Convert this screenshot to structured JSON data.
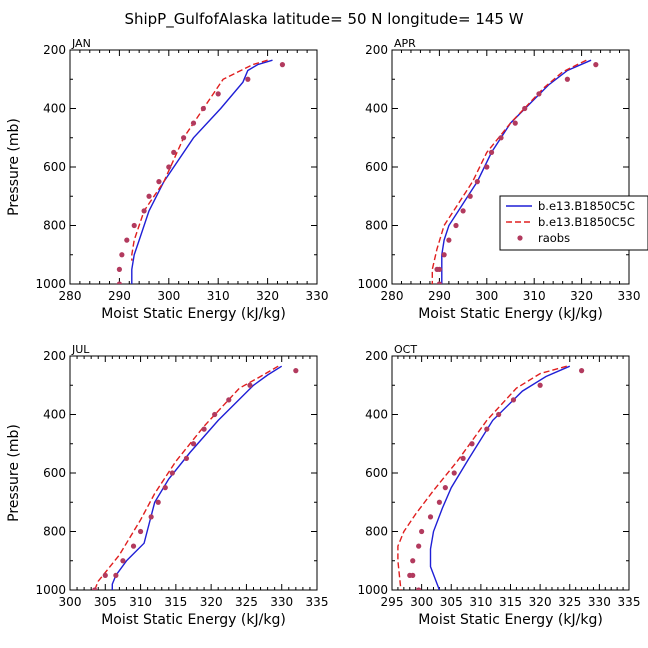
{
  "figure_title": "ShipP_GulfofAlaska  latitude= 50 N longitude= 145 W",
  "legend": {
    "entries": [
      {
        "label": "b.e13.B1850C5C",
        "style": "solid",
        "color": "#1f1fd6"
      },
      {
        "label": "b.e13.B1850C5C",
        "style": "dashed",
        "color": "#e01e1e"
      },
      {
        "label": "raobs",
        "style": "dots",
        "color": "#b23a5e"
      }
    ]
  },
  "colors": {
    "solid": "#1f1fd6",
    "dashed": "#e01e1e",
    "dots": "#b23a5e"
  },
  "chart_data": [
    {
      "type": "line",
      "panel": "JAN",
      "title": "JAN",
      "xlabel": "Moist Static Energy (kJ/kg)",
      "ylabel": "Pressure (mb)",
      "xlim": [
        280,
        330
      ],
      "ylim": [
        1000,
        200
      ],
      "xticks": [
        280,
        290,
        300,
        310,
        320,
        330
      ],
      "yticks": [
        200,
        400,
        600,
        800,
        1000
      ],
      "series": [
        {
          "name": "b.e13.B1850C5C",
          "style": "solid",
          "x": [
            321,
            318,
            316,
            315,
            310.5,
            305,
            299,
            296,
            294,
            293,
            292.5,
            292.5
          ],
          "y": [
            235,
            250,
            270,
            310,
            400,
            500,
            650,
            750,
            850,
            900,
            950,
            1000
          ]
        },
        {
          "name": "b.e13.B1850C5C",
          "style": "dashed",
          "x": [
            320,
            317,
            314,
            311,
            307,
            303,
            299,
            295,
            293,
            292.5,
            292.5
          ],
          "y": [
            235,
            250,
            275,
            300,
            400,
            500,
            650,
            750,
            850,
            900,
            920
          ]
        },
        {
          "name": "raobs",
          "style": "dots",
          "x": [
            323,
            316,
            310,
            307,
            305,
            303,
            301,
            300,
            298,
            296,
            295,
            293,
            291.5,
            290.5,
            290,
            290
          ],
          "y": [
            250,
            300,
            350,
            400,
            450,
            500,
            550,
            600,
            650,
            700,
            750,
            800,
            850,
            900,
            950,
            1000
          ]
        }
      ]
    },
    {
      "type": "line",
      "panel": "APR",
      "title": "APR",
      "xlabel": "Moist Static Energy (kJ/kg)",
      "ylabel": "",
      "xlim": [
        280,
        330
      ],
      "ylim": [
        1000,
        200
      ],
      "xticks": [
        280,
        290,
        300,
        310,
        320,
        330
      ],
      "yticks": [
        200,
        400,
        600,
        800,
        1000
      ],
      "series": [
        {
          "name": "b.e13.B1850C5C",
          "style": "solid",
          "x": [
            322,
            317,
            313,
            305,
            301,
            298,
            296,
            294,
            292,
            291,
            290.5,
            290.5
          ],
          "y": [
            235,
            270,
            320,
            450,
            550,
            650,
            700,
            750,
            800,
            850,
            900,
            1000
          ]
        },
        {
          "name": "b.e13.B1850C5C",
          "style": "dashed",
          "x": [
            321,
            316,
            312,
            305,
            300,
            297,
            295,
            293,
            291,
            289.5,
            288.5,
            288.5
          ],
          "y": [
            235,
            275,
            330,
            450,
            550,
            650,
            700,
            750,
            800,
            880,
            950,
            1000
          ]
        },
        {
          "name": "raobs",
          "style": "dots",
          "x": [
            323,
            317,
            311,
            308,
            306,
            303,
            301,
            300,
            298,
            296.5,
            295,
            293.5,
            292,
            291,
            290,
            289.5,
            290
          ],
          "y": [
            250,
            300,
            350,
            400,
            450,
            500,
            550,
            600,
            650,
            700,
            750,
            800,
            850,
            900,
            950,
            950,
            1000
          ]
        }
      ]
    },
    {
      "type": "line",
      "panel": "JUL",
      "title": "JUL",
      "xlabel": "Moist Static Energy (kJ/kg)",
      "ylabel": "Pressure (mb)",
      "xlim": [
        300,
        335
      ],
      "ylim": [
        1000,
        200
      ],
      "xticks": [
        300,
        305,
        310,
        315,
        320,
        325,
        330,
        335
      ],
      "yticks": [
        200,
        400,
        600,
        800,
        1000
      ],
      "series": [
        {
          "name": "b.e13.B1850C5C",
          "style": "solid",
          "x": [
            330,
            328,
            326,
            321,
            317,
            314,
            312,
            310.5,
            308,
            306.5,
            306,
            306
          ],
          "y": [
            235,
            265,
            300,
            420,
            530,
            620,
            700,
            840,
            900,
            950,
            980,
            1000
          ]
        },
        {
          "name": "b.e13.B1850C5C",
          "style": "dashed",
          "x": [
            329.5,
            327,
            324,
            319,
            315,
            312,
            310,
            307,
            305,
            304,
            303.5
          ],
          "y": [
            235,
            270,
            310,
            440,
            560,
            670,
            760,
            880,
            940,
            970,
            1000
          ]
        },
        {
          "name": "raobs",
          "style": "dots",
          "x": [
            332,
            325.5,
            322.5,
            320.5,
            319,
            317.5,
            316.5,
            314.5,
            313.5,
            312.5,
            311.5,
            310,
            309,
            307.5,
            306.5,
            305,
            303.5
          ],
          "y": [
            250,
            300,
            350,
            400,
            450,
            500,
            550,
            600,
            650,
            700,
            750,
            800,
            850,
            900,
            950,
            950,
            1000
          ]
        }
      ]
    },
    {
      "type": "line",
      "panel": "OCT",
      "title": "OCT",
      "xlabel": "Moist Static Energy (kJ/kg)",
      "ylabel": "",
      "xlim": [
        295,
        335
      ],
      "ylim": [
        1000,
        200
      ],
      "xticks": [
        295,
        300,
        305,
        310,
        315,
        320,
        325,
        330,
        335
      ],
      "yticks": [
        200,
        400,
        600,
        800,
        1000
      ],
      "series": [
        {
          "name": "b.e13.B1850C5C",
          "style": "solid",
          "x": [
            325,
            321,
            317,
            312,
            308,
            305,
            303.5,
            302,
            301.5,
            301.5,
            303
          ],
          "y": [
            235,
            270,
            320,
            420,
            550,
            650,
            720,
            800,
            860,
            920,
            1000
          ]
        },
        {
          "name": "b.e13.B1850C5C",
          "style": "dashed",
          "x": [
            324.5,
            320,
            316,
            311,
            306,
            302,
            299,
            297,
            296,
            296,
            296.5
          ],
          "y": [
            235,
            260,
            310,
            420,
            560,
            660,
            740,
            800,
            850,
            900,
            1000
          ]
        },
        {
          "name": "raobs",
          "style": "dots",
          "x": [
            327,
            320,
            315.5,
            313,
            311,
            308.5,
            307,
            305.5,
            304,
            303,
            301.5,
            300,
            299.5,
            298.5,
            298.5,
            298,
            299.5
          ],
          "y": [
            250,
            300,
            350,
            400,
            450,
            500,
            550,
            600,
            650,
            700,
            750,
            800,
            850,
            900,
            950,
            950,
            1000
          ]
        }
      ]
    }
  ]
}
